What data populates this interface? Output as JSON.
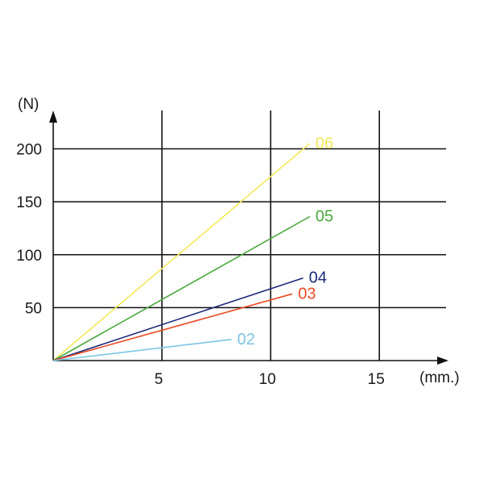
{
  "chart_data": {
    "type": "line",
    "title": "",
    "x_unit": "(mm.)",
    "y_unit": "(N)",
    "xlim": [
      0,
      18
    ],
    "ylim": [
      0,
      215
    ],
    "x_ticks": [
      5,
      10,
      15
    ],
    "y_ticks": [
      50,
      100,
      150,
      200
    ],
    "x_tick_labels": [
      "5",
      "10",
      "15"
    ],
    "y_tick_labels": [
      "50",
      "100",
      "150",
      "200"
    ],
    "grid": true,
    "series": [
      {
        "name": "06",
        "color": "#f2ea5a",
        "x": [
          0,
          11.8
        ],
        "y": [
          0,
          205
        ]
      },
      {
        "name": "05",
        "color": "#4aaa3c",
        "x": [
          0,
          11.8
        ],
        "y": [
          0,
          136
        ]
      },
      {
        "name": "04",
        "color": "#1c2a7a",
        "x": [
          0,
          11.5
        ],
        "y": [
          0,
          78
        ]
      },
      {
        "name": "03",
        "color": "#ee4a22",
        "x": [
          0,
          11.0
        ],
        "y": [
          0,
          63
        ]
      },
      {
        "name": "02",
        "color": "#7cc6e4",
        "x": [
          0,
          8.2
        ],
        "y": [
          0,
          20
        ]
      }
    ]
  }
}
